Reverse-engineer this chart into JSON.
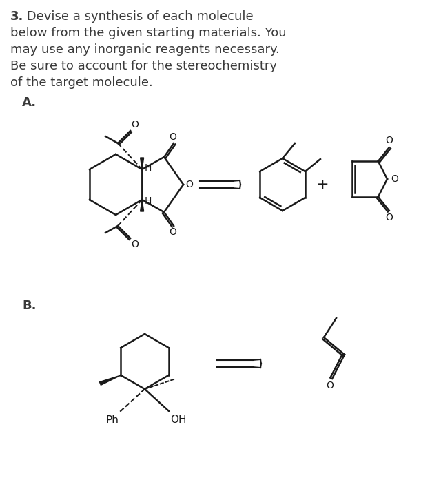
{
  "bg_color": "#ffffff",
  "text_color": "#3a3a3a",
  "col": "#1a1a1a",
  "title_lines": [
    "3. Devise a synthesis of each molecule",
    "below from the given starting materials. You",
    "may use any inorganic reagents necessary.",
    "Be sure to account for the stereochemistry",
    "of the target molecule."
  ],
  "label_A": "A.",
  "label_B": "B.",
  "lw": 1.8
}
